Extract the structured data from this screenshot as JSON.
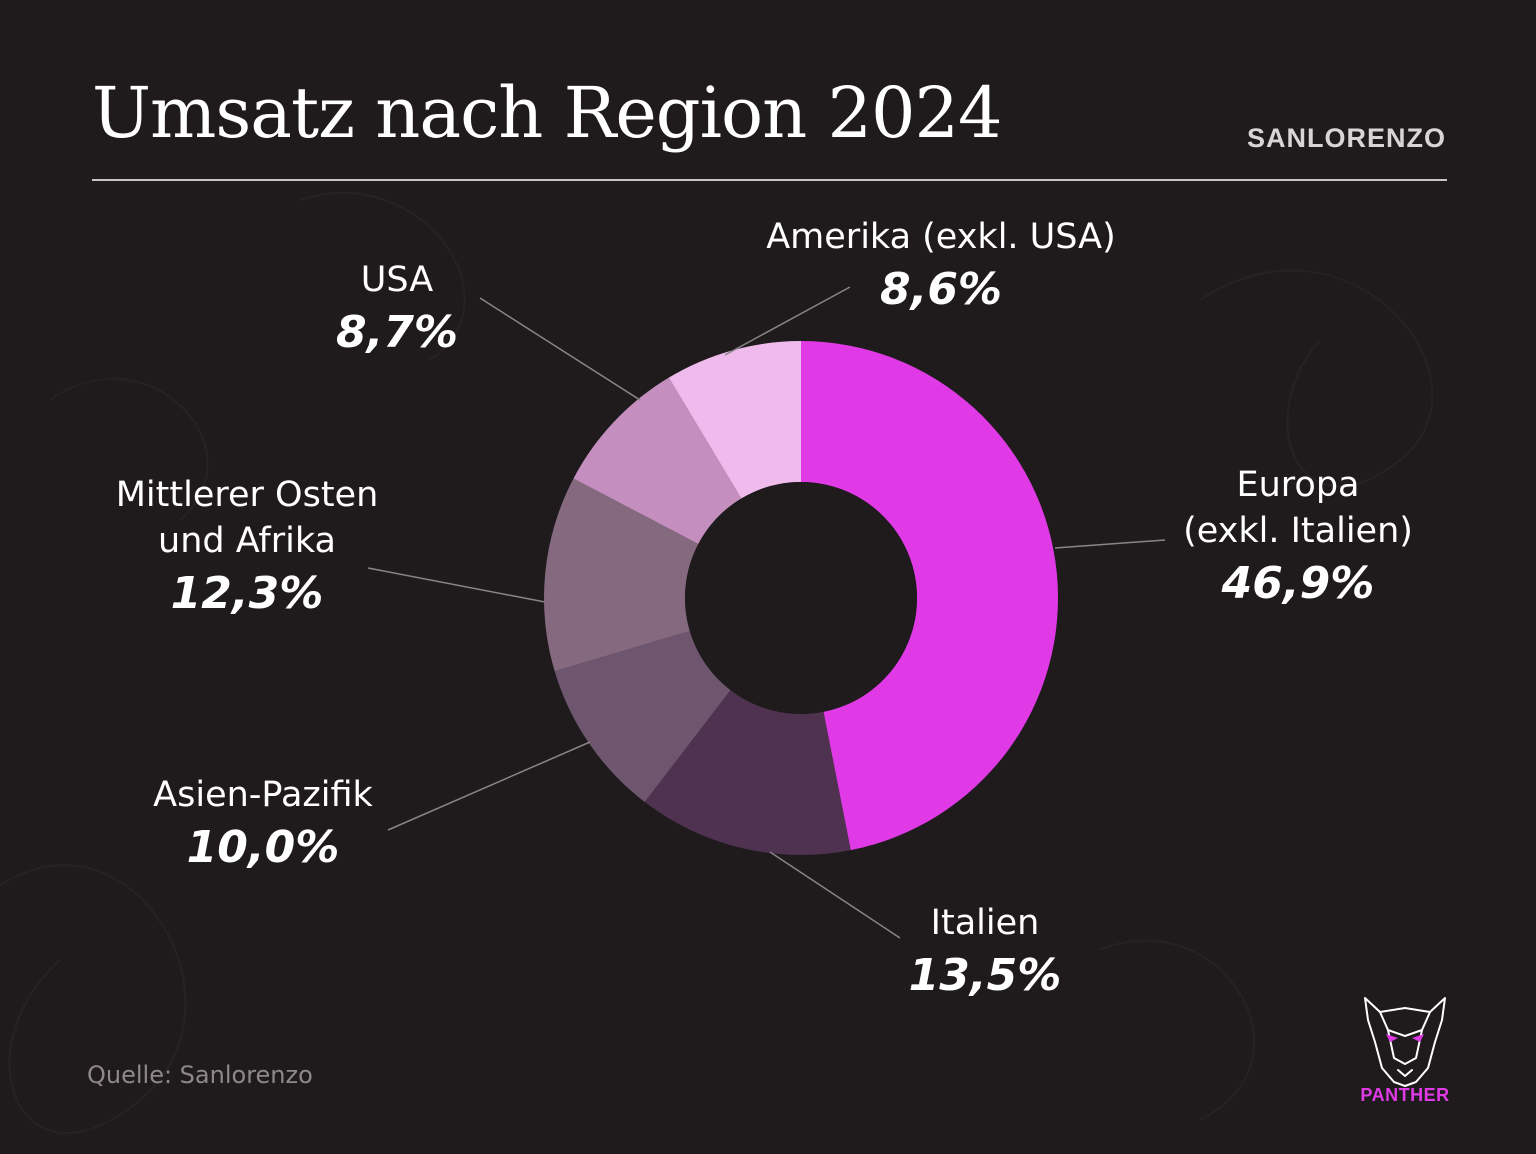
{
  "title": "Umsatz nach Region 2024",
  "brand": "SANLORENZO",
  "source": "Quelle: Sanlorenzo",
  "logo_text": "PANTHER",
  "colors": {
    "background": "#1f1b1d",
    "accent": "#e03ae6",
    "text": "#ffffff"
  },
  "chart_data": {
    "type": "pie",
    "style": "donut",
    "slices": [
      {
        "label": "Europa (exkl. Italien)",
        "label_lines": [
          "Europa",
          "(exkl. Italien)"
        ],
        "value": 46.9,
        "value_label": "46,9%",
        "color": "#e03ae6"
      },
      {
        "label": "Italien",
        "label_lines": [
          "Italien"
        ],
        "value": 13.5,
        "value_label": "13,5%",
        "color": "#4e3250"
      },
      {
        "label": "Asien-Pazifik",
        "label_lines": [
          "Asien-Pazifik"
        ],
        "value": 10.0,
        "value_label": "10,0%",
        "color": "#6d566e"
      },
      {
        "label": "Mittlerer Osten und Afrika",
        "label_lines": [
          "Mittlerer Osten",
          "und Afrika"
        ],
        "value": 12.3,
        "value_label": "12,3%",
        "color": "#85697f"
      },
      {
        "label": "USA",
        "label_lines": [
          "USA"
        ],
        "value": 8.7,
        "value_label": "8,7%",
        "color": "#c48fbf"
      },
      {
        "label": "Amerika (exkl. USA)",
        "label_lines": [
          "Amerika (exkl. USA)"
        ],
        "value": 8.6,
        "value_label": "8,6%",
        "color": "#eebbec"
      }
    ]
  }
}
